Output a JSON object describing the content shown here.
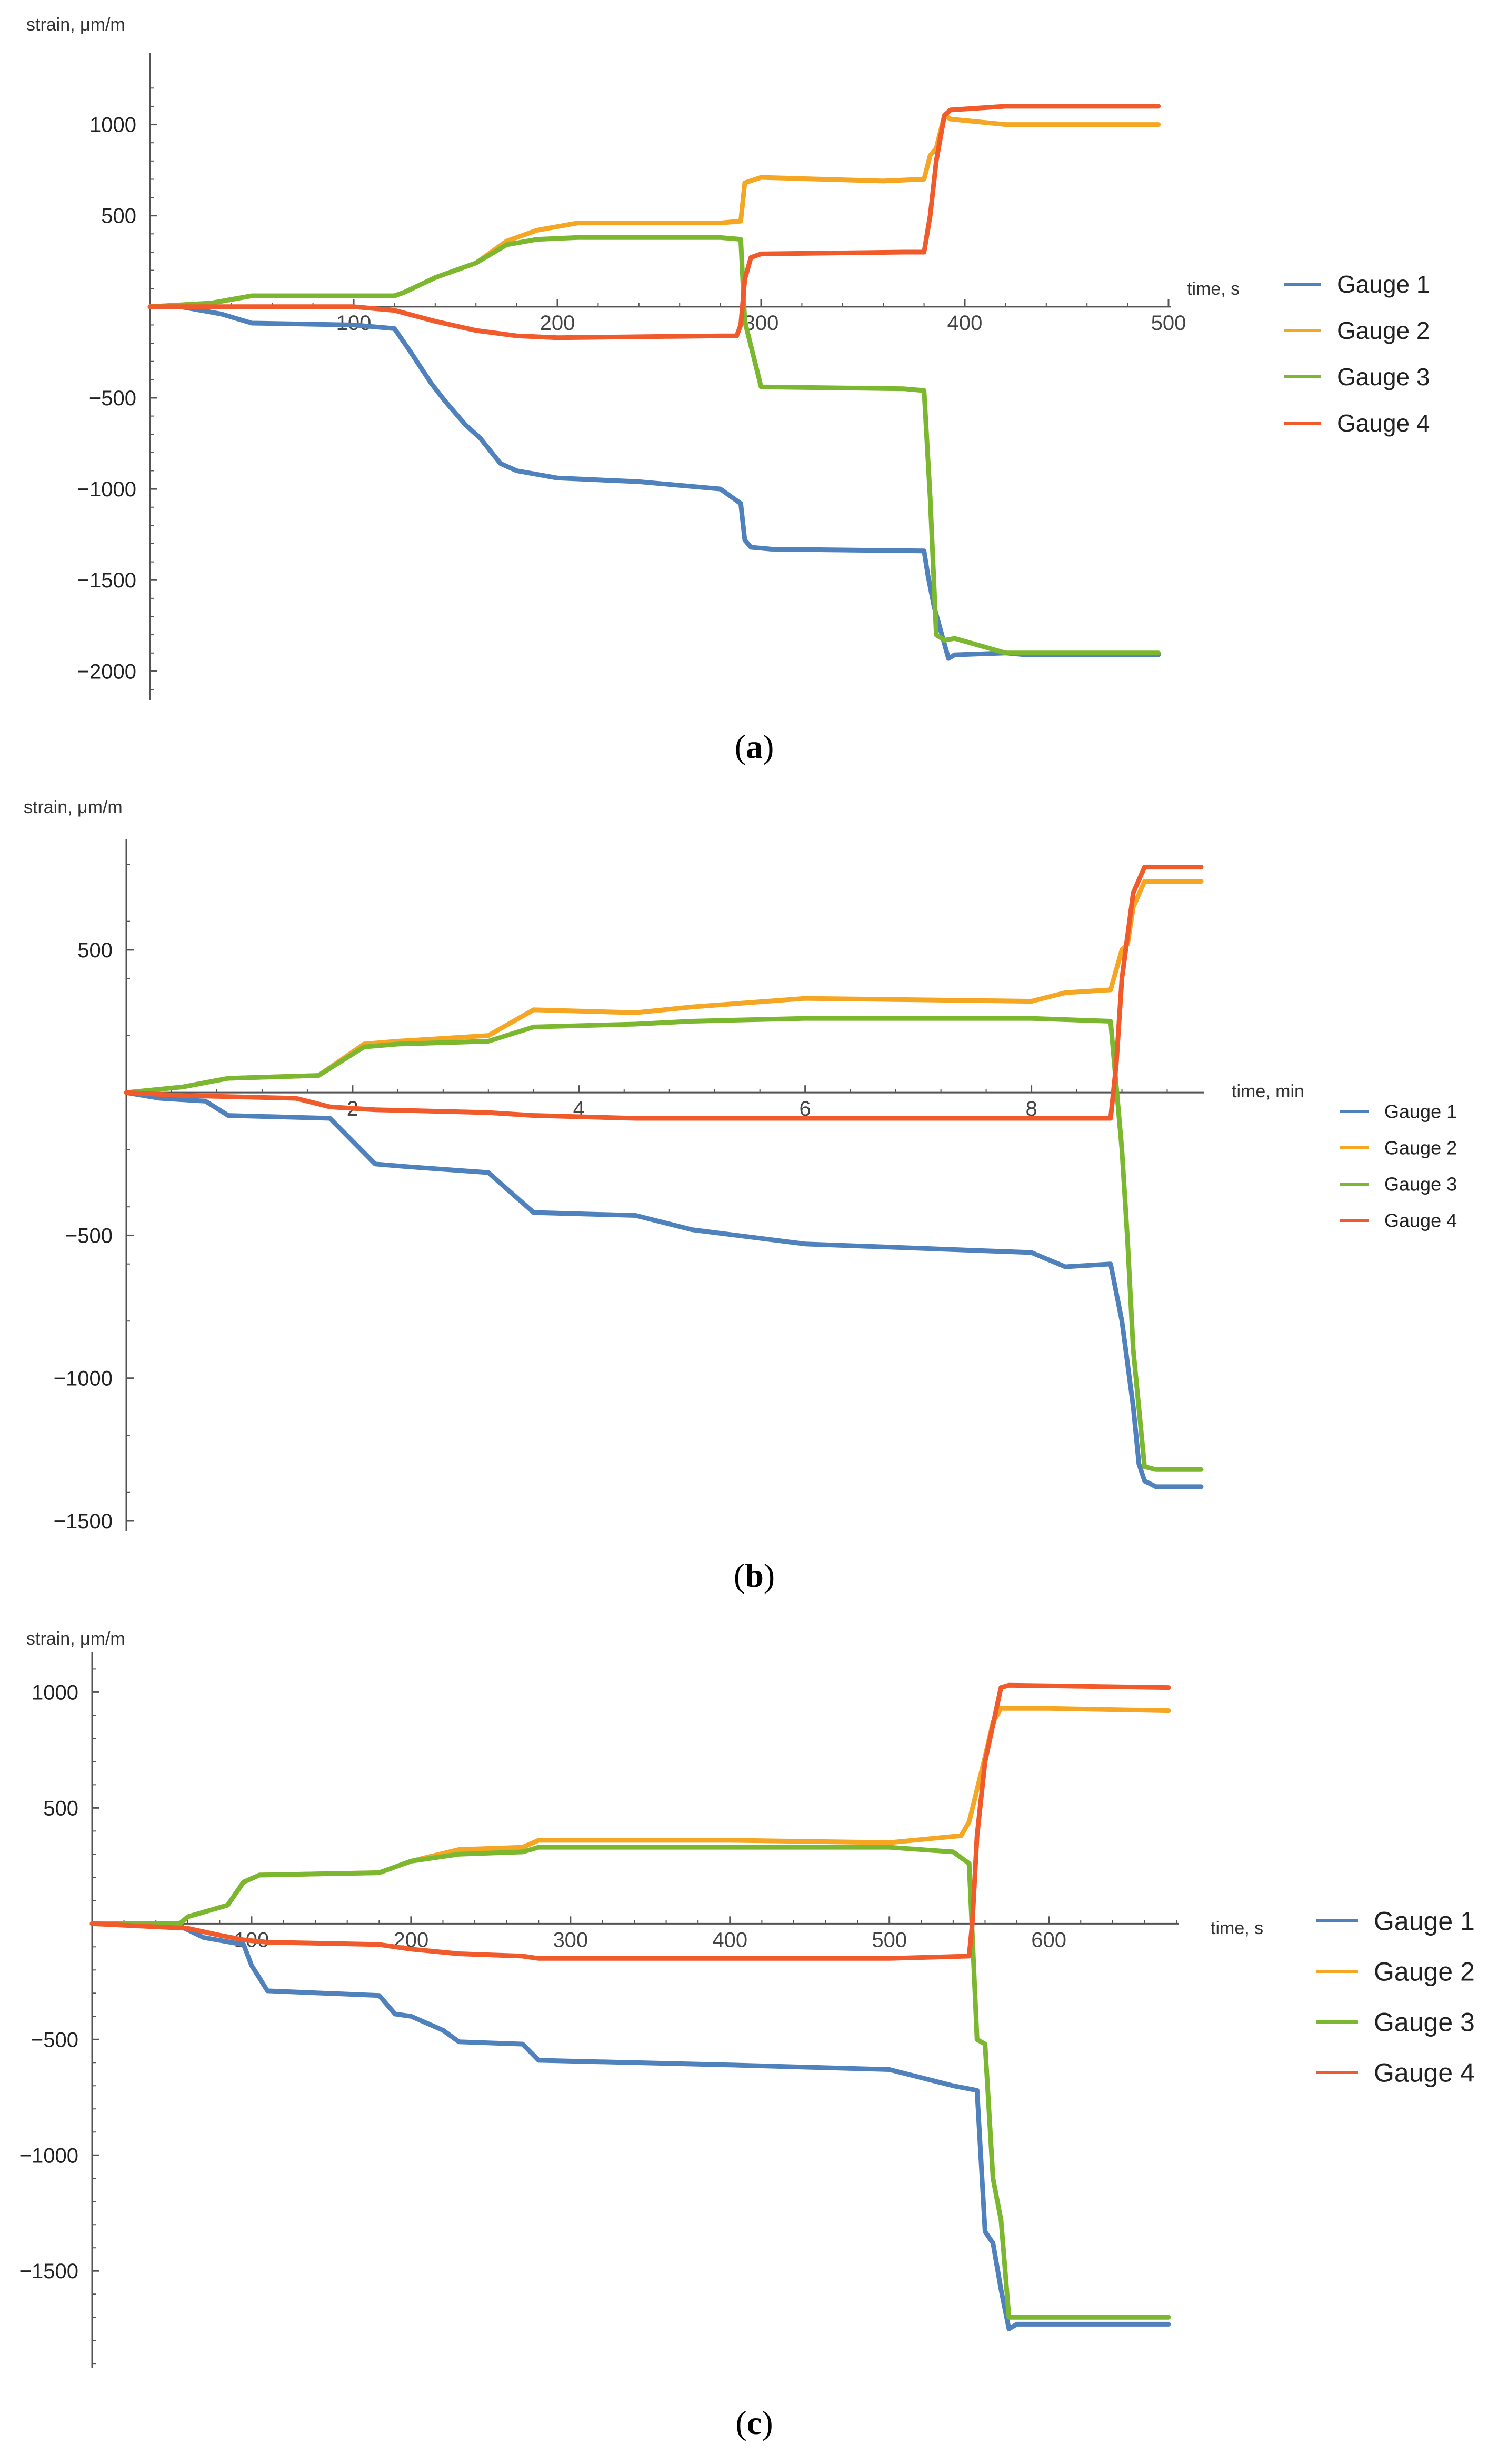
{
  "colors": {
    "gauge1": "#4f81bd",
    "gauge2": "#f5a623",
    "gauge3": "#7cb82f",
    "gauge4": "#f15a2b",
    "axis": "#555555"
  },
  "chart_data": [
    {
      "type": "line",
      "panel_label": "a",
      "ylabel": "strain, μm/m",
      "xlabel": "time, s",
      "xlim": [
        0,
        500
      ],
      "ylim": [
        -2100,
        1250
      ],
      "x_ticks": [
        {
          "value": 100,
          "label": "100"
        },
        {
          "value": 200,
          "label": "200"
        },
        {
          "value": 300,
          "label": "300"
        },
        {
          "value": 400,
          "label": "400"
        },
        {
          "value": 500,
          "label": "500"
        }
      ],
      "y_ticks": [
        {
          "value": 1000,
          "label": "1000"
        },
        {
          "value": 500,
          "label": "500"
        },
        {
          "value": -500,
          "label": "−500"
        },
        {
          "value": -1000,
          "label": "−1000"
        },
        {
          "value": -1500,
          "label": "−1500"
        },
        {
          "value": -2000,
          "label": "−2000"
        }
      ],
      "legend_position": "right",
      "series": [
        {
          "name": "Gauge 1",
          "color_key": "gauge1",
          "x": [
            0,
            15,
            35,
            50,
            100,
            120,
            128,
            138,
            145,
            155,
            162,
            172,
            180,
            190,
            200,
            240,
            280,
            290,
            292,
            295,
            305,
            380,
            382,
            385,
            392,
            395,
            420,
            430,
            495
          ],
          "y": [
            0,
            0,
            -40,
            -90,
            -100,
            -120,
            -250,
            -420,
            -520,
            -650,
            -720,
            -860,
            -900,
            -920,
            -940,
            -960,
            -1000,
            -1080,
            -1280,
            -1320,
            -1330,
            -1340,
            -1480,
            -1650,
            -1930,
            -1910,
            -1900,
            -1910,
            -1910
          ]
        },
        {
          "name": "Gauge 2",
          "color_key": "gauge2",
          "x": [
            0,
            30,
            50,
            120,
            125,
            140,
            160,
            175,
            190,
            210,
            280,
            290,
            292,
            300,
            360,
            380,
            383,
            386,
            390,
            393,
            420,
            440,
            495
          ],
          "y": [
            0,
            20,
            60,
            60,
            80,
            160,
            240,
            360,
            420,
            460,
            460,
            470,
            680,
            710,
            690,
            700,
            830,
            870,
            1050,
            1030,
            1000,
            1000,
            1000
          ]
        },
        {
          "name": "Gauge 3",
          "color_key": "gauge3",
          "x": [
            0,
            30,
            50,
            120,
            125,
            140,
            160,
            175,
            190,
            210,
            280,
            290,
            292,
            300,
            370,
            380,
            383,
            386,
            390,
            395,
            420,
            495
          ],
          "y": [
            0,
            20,
            60,
            60,
            80,
            160,
            240,
            340,
            370,
            380,
            380,
            370,
            -80,
            -440,
            -450,
            -460,
            -1050,
            -1800,
            -1830,
            -1820,
            -1900,
            -1900
          ]
        },
        {
          "name": "Gauge 4",
          "color_key": "gauge4",
          "x": [
            0,
            100,
            120,
            140,
            160,
            180,
            200,
            280,
            288,
            290,
            292,
            295,
            300,
            370,
            380,
            383,
            386,
            390,
            393,
            420,
            495
          ],
          "y": [
            0,
            0,
            -20,
            -80,
            -130,
            -160,
            -170,
            -160,
            -160,
            -100,
            150,
            270,
            290,
            300,
            300,
            500,
            800,
            1050,
            1080,
            1100,
            1100
          ]
        }
      ]
    },
    {
      "type": "line",
      "panel_label": "b",
      "ylabel": "strain, μm/m",
      "xlabel": "time, min",
      "xlim": [
        0,
        9.5
      ],
      "ylim": [
        -1500,
        850
      ],
      "x_ticks": [
        {
          "value": 2,
          "label": "2"
        },
        {
          "value": 4,
          "label": "4"
        },
        {
          "value": 6,
          "label": "6"
        },
        {
          "value": 8,
          "label": "8"
        }
      ],
      "y_ticks": [
        {
          "value": 500,
          "label": "500"
        },
        {
          "value": -500,
          "label": "−500"
        },
        {
          "value": -1000,
          "label": "−1000"
        },
        {
          "value": -1500,
          "label": "−1500"
        }
      ],
      "legend_position": "right",
      "series": [
        {
          "name": "Gauge 1",
          "color_key": "gauge1",
          "x": [
            0,
            0.3,
            0.7,
            0.9,
            1.8,
            2.2,
            2.5,
            3.2,
            3.4,
            3.6,
            4.5,
            5.0,
            6.0,
            8.0,
            8.3,
            8.7,
            8.8,
            8.85,
            8.9,
            8.95,
            9.0,
            9.1,
            9.5
          ],
          "y": [
            0,
            -20,
            -30,
            -80,
            -90,
            -250,
            -260,
            -280,
            -350,
            -420,
            -430,
            -480,
            -530,
            -560,
            -610,
            -600,
            -800,
            -950,
            -1100,
            -1300,
            -1360,
            -1380,
            -1380
          ]
        },
        {
          "name": "Gauge 2",
          "color_key": "gauge2",
          "x": [
            0,
            0.5,
            0.9,
            1.7,
            2.1,
            2.4,
            3.2,
            3.6,
            4.5,
            5.0,
            6.0,
            8.0,
            8.3,
            8.7,
            8.8,
            8.85,
            8.9,
            9.0,
            9.5
          ],
          "y": [
            0,
            20,
            50,
            60,
            170,
            180,
            200,
            290,
            280,
            300,
            330,
            320,
            350,
            360,
            500,
            520,
            650,
            740,
            740
          ]
        },
        {
          "name": "Gauge 3",
          "color_key": "gauge3",
          "x": [
            0,
            0.5,
            0.9,
            1.7,
            2.1,
            2.4,
            3.2,
            3.6,
            4.5,
            5.0,
            6.0,
            8.0,
            8.7,
            8.8,
            8.85,
            8.9,
            9.0,
            9.1,
            9.5
          ],
          "y": [
            0,
            20,
            50,
            60,
            160,
            170,
            180,
            230,
            240,
            250,
            260,
            260,
            250,
            -200,
            -520,
            -900,
            -1310,
            -1320,
            -1320
          ]
        },
        {
          "name": "Gauge 4",
          "color_key": "gauge4",
          "x": [
            0,
            0.5,
            1.5,
            1.8,
            2.2,
            3.2,
            3.6,
            4.5,
            5.0,
            6.0,
            8.0,
            8.7,
            8.75,
            8.8,
            8.85,
            8.9,
            9.0,
            9.5
          ],
          "y": [
            0,
            -10,
            -20,
            -50,
            -60,
            -70,
            -80,
            -90,
            -90,
            -90,
            -90,
            -90,
            100,
            400,
            550,
            700,
            790,
            790
          ]
        }
      ]
    },
    {
      "type": "line",
      "panel_label": "c",
      "ylabel": "strain, μm/m",
      "xlabel": "time, s",
      "xlim": [
        0,
        680
      ],
      "ylim": [
        -1920,
        1160
      ],
      "x_ticks": [
        {
          "value": 100,
          "label": "100"
        },
        {
          "value": 200,
          "label": "200"
        },
        {
          "value": 300,
          "label": "300"
        },
        {
          "value": 400,
          "label": "400"
        },
        {
          "value": 500,
          "label": "500"
        },
        {
          "value": 600,
          "label": "600"
        }
      ],
      "y_ticks": [
        {
          "value": 1000,
          "label": "1000"
        },
        {
          "value": 500,
          "label": "500"
        },
        {
          "value": -500,
          "label": "−500"
        },
        {
          "value": -1000,
          "label": "−1000"
        },
        {
          "value": -1500,
          "label": "−1500"
        }
      ],
      "legend_position": "right",
      "series": [
        {
          "name": "Gauge 1",
          "color_key": "gauge1",
          "x": [
            0,
            55,
            70,
            95,
            100,
            110,
            180,
            190,
            200,
            220,
            230,
            270,
            280,
            400,
            500,
            540,
            555,
            560,
            565,
            570,
            575,
            580,
            600,
            675
          ],
          "y": [
            0,
            -10,
            -60,
            -90,
            -180,
            -290,
            -310,
            -390,
            -400,
            -460,
            -510,
            -520,
            -590,
            -610,
            -630,
            -700,
            -720,
            -1330,
            -1380,
            -1580,
            -1750,
            -1730,
            -1730,
            -1730
          ]
        },
        {
          "name": "Gauge 2",
          "color_key": "gauge2",
          "x": [
            0,
            55,
            60,
            85,
            95,
            105,
            180,
            200,
            230,
            270,
            280,
            400,
            500,
            530,
            545,
            550,
            560,
            565,
            570,
            600,
            675
          ],
          "y": [
            0,
            0,
            30,
            80,
            180,
            210,
            220,
            270,
            320,
            330,
            360,
            360,
            350,
            370,
            380,
            440,
            720,
            870,
            930,
            930,
            920
          ]
        },
        {
          "name": "Gauge 3",
          "color_key": "gauge3",
          "x": [
            0,
            55,
            60,
            85,
            95,
            105,
            180,
            200,
            230,
            270,
            280,
            400,
            500,
            540,
            550,
            555,
            560,
            565,
            570,
            575,
            600,
            675
          ],
          "y": [
            0,
            0,
            30,
            80,
            180,
            210,
            220,
            270,
            300,
            310,
            330,
            330,
            330,
            310,
            260,
            -500,
            -520,
            -1100,
            -1280,
            -1700,
            -1700,
            -1700
          ]
        },
        {
          "name": "Gauge 4",
          "color_key": "gauge4",
          "x": [
            0,
            60,
            80,
            95,
            110,
            180,
            200,
            230,
            270,
            280,
            400,
            500,
            550,
            552,
            555,
            560,
            565,
            570,
            575,
            675
          ],
          "y": [
            0,
            -20,
            -50,
            -70,
            -80,
            -90,
            -110,
            -130,
            -140,
            -150,
            -150,
            -150,
            -140,
            0,
            380,
            700,
            860,
            1020,
            1030,
            1020
          ]
        }
      ]
    }
  ]
}
